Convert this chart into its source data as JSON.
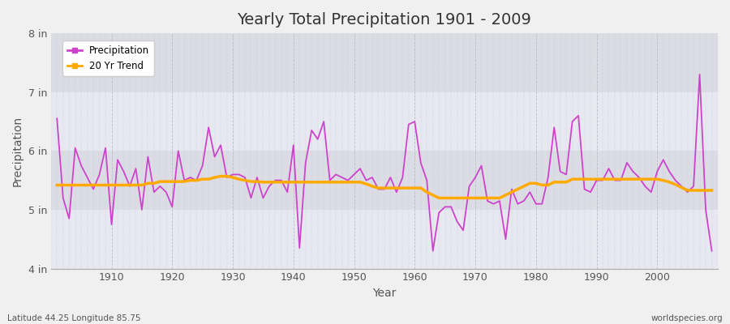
{
  "title": "Yearly Total Precipitation 1901 - 2009",
  "xlabel": "Year",
  "ylabel": "Precipitation",
  "subtitle_left": "Latitude 44.25 Longitude 85.75",
  "subtitle_right": "worldspecies.org",
  "background_color": "#f0f0f0",
  "plot_bg_color": "#e8e8ec",
  "band_color_dark": "#dcdce4",
  "band_color_light": "#e8e8f0",
  "precip_color": "#cc44cc",
  "trend_color": "#ffaa00",
  "ylim": [
    4,
    8
  ],
  "yticks": [
    4,
    5,
    6,
    7,
    8
  ],
  "ytick_labels": [
    "4 in",
    "5 in",
    "6 in",
    "7 in",
    "8 in"
  ],
  "xlim": [
    1900,
    2010
  ],
  "years": [
    1901,
    1902,
    1903,
    1904,
    1905,
    1906,
    1907,
    1908,
    1909,
    1910,
    1911,
    1912,
    1913,
    1914,
    1915,
    1916,
    1917,
    1918,
    1919,
    1920,
    1921,
    1922,
    1923,
    1924,
    1925,
    1926,
    1927,
    1928,
    1929,
    1930,
    1931,
    1932,
    1933,
    1934,
    1935,
    1936,
    1937,
    1938,
    1939,
    1940,
    1941,
    1942,
    1943,
    1944,
    1945,
    1946,
    1947,
    1948,
    1949,
    1950,
    1951,
    1952,
    1953,
    1954,
    1955,
    1956,
    1957,
    1958,
    1959,
    1960,
    1961,
    1962,
    1963,
    1964,
    1965,
    1966,
    1967,
    1968,
    1969,
    1970,
    1971,
    1972,
    1973,
    1974,
    1975,
    1976,
    1977,
    1978,
    1979,
    1980,
    1981,
    1982,
    1983,
    1984,
    1985,
    1986,
    1987,
    1988,
    1989,
    1990,
    1991,
    1992,
    1993,
    1994,
    1995,
    1996,
    1997,
    1998,
    1999,
    2000,
    2001,
    2002,
    2003,
    2004,
    2005,
    2006,
    2007,
    2008,
    2009
  ],
  "precip": [
    6.55,
    5.2,
    4.85,
    6.05,
    5.75,
    5.55,
    5.35,
    5.6,
    6.05,
    4.75,
    5.85,
    5.65,
    5.4,
    5.7,
    5.0,
    5.9,
    5.3,
    5.4,
    5.3,
    5.05,
    6.0,
    5.5,
    5.55,
    5.5,
    5.75,
    6.4,
    5.9,
    6.1,
    5.55,
    5.6,
    5.6,
    5.55,
    5.2,
    5.55,
    5.2,
    5.4,
    5.5,
    5.5,
    5.3,
    6.1,
    4.35,
    5.8,
    6.35,
    6.2,
    6.5,
    5.5,
    5.6,
    5.55,
    5.5,
    5.6,
    5.7,
    5.5,
    5.55,
    5.35,
    5.35,
    5.55,
    5.3,
    5.55,
    6.45,
    6.5,
    5.8,
    5.5,
    4.3,
    4.95,
    5.05,
    5.05,
    4.8,
    4.65,
    5.4,
    5.55,
    5.75,
    5.15,
    5.1,
    5.15,
    4.5,
    5.35,
    5.1,
    5.15,
    5.3,
    5.1,
    5.1,
    5.55,
    6.4,
    5.65,
    5.6,
    6.5,
    6.6,
    5.35,
    5.3,
    5.5,
    5.5,
    5.7,
    5.5,
    5.5,
    5.8,
    5.65,
    5.55,
    5.4,
    5.3,
    5.65,
    5.85,
    5.65,
    5.5,
    5.4,
    5.3,
    5.4,
    7.3,
    5.0,
    4.3
  ],
  "trend": [
    5.42,
    5.42,
    5.42,
    5.42,
    5.42,
    5.42,
    5.42,
    5.42,
    5.42,
    5.42,
    5.42,
    5.42,
    5.42,
    5.42,
    5.42,
    5.45,
    5.45,
    5.48,
    5.48,
    5.48,
    5.48,
    5.48,
    5.5,
    5.5,
    5.52,
    5.52,
    5.55,
    5.57,
    5.57,
    5.55,
    5.52,
    5.5,
    5.48,
    5.48,
    5.47,
    5.47,
    5.47,
    5.47,
    5.47,
    5.47,
    5.47,
    5.47,
    5.47,
    5.47,
    5.47,
    5.47,
    5.47,
    5.47,
    5.47,
    5.47,
    5.47,
    5.44,
    5.4,
    5.37,
    5.37,
    5.37,
    5.37,
    5.37,
    5.37,
    5.37,
    5.37,
    5.3,
    5.25,
    5.2,
    5.2,
    5.2,
    5.2,
    5.2,
    5.2,
    5.2,
    5.2,
    5.2,
    5.2,
    5.2,
    5.25,
    5.3,
    5.35,
    5.4,
    5.45,
    5.45,
    5.42,
    5.42,
    5.47,
    5.47,
    5.47,
    5.52,
    5.52,
    5.52,
    5.52,
    5.52,
    5.52,
    5.52,
    5.52,
    5.52,
    5.52,
    5.52,
    5.52,
    5.52,
    5.52,
    5.52,
    5.5,
    5.47,
    5.43,
    5.38,
    5.33,
    5.33,
    5.33,
    5.33,
    5.33
  ]
}
